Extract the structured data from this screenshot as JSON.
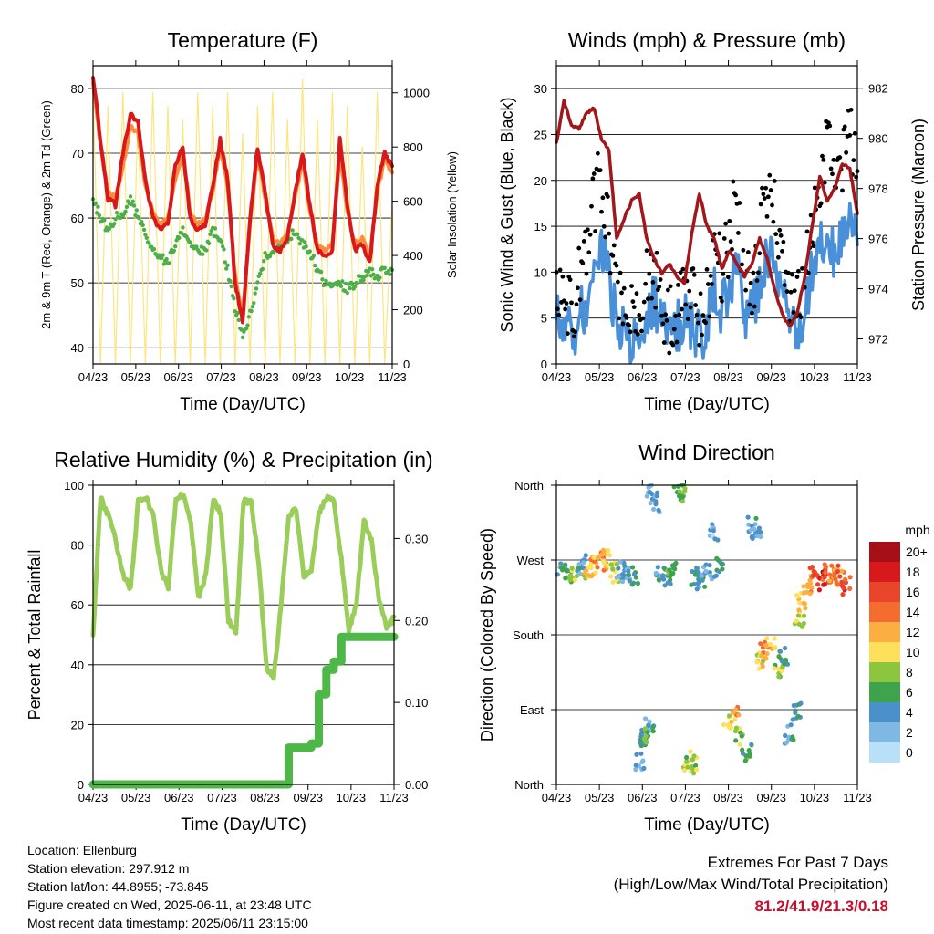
{
  "footer": {
    "location": "Location: Ellenburg",
    "elevation": "Station elevation: 297.912 m",
    "latlon": "Station lat/lon: 44.8955; -73.845",
    "created": "Figure created on Wed, 2025-06-11, at 23:48 UTC",
    "recent": "Most recent data timestamp: 2025/06/11 23:15:00"
  },
  "extremes": {
    "title": "Extremes For Past 7 Days",
    "subtitle": "(High/Low/Max Wind/Total Precipitation)",
    "values": "81.2/41.9/21.3/0.18",
    "color": "#c8102e"
  },
  "chart_data": [
    {
      "type": "line",
      "title": "Temperature (F)",
      "xlabel": "Time (Day/UTC)",
      "ylabel": "2m & 9m T (Red, Orange) & 2m Td (Green)",
      "y2label": "Solar Insolation (Yellow)",
      "x_ticks": [
        "04/23",
        "05/23",
        "06/23",
        "07/23",
        "08/23",
        "09/23",
        "10/23",
        "11/23"
      ],
      "ylim": [
        37.5,
        83.5
      ],
      "y_ticks": [
        40,
        50,
        60,
        70,
        80
      ],
      "y2lim": [
        0,
        1100
      ],
      "y2_ticks": [
        0,
        200,
        400,
        600,
        800,
        1000
      ],
      "grid": true,
      "series": [
        {
          "color": "#d7191c",
          "values": [
            82,
            72,
            63,
            62,
            70,
            76,
            75,
            66,
            60,
            58,
            59,
            68,
            71,
            60,
            58,
            59,
            65,
            72,
            66,
            50,
            44,
            60,
            71,
            64,
            56,
            55,
            57,
            64,
            70,
            62,
            55,
            54,
            55,
            72,
            62,
            55,
            56,
            53,
            65,
            70,
            68
          ]
        },
        {
          "color": "#fd8d3c",
          "values": [
            81,
            71,
            64,
            63,
            68,
            74,
            73,
            65,
            61,
            59,
            60,
            66,
            70,
            61,
            59,
            60,
            64,
            71,
            65,
            51,
            45,
            59,
            70,
            63,
            57,
            56,
            58,
            63,
            69,
            61,
            56,
            55,
            56,
            70,
            61,
            56,
            57,
            54,
            64,
            69,
            67
          ]
        },
        {
          "color": "#4daf4a",
          "values": [
            63,
            60,
            58,
            60,
            61,
            63,
            60,
            58,
            55,
            54,
            53,
            56,
            58,
            56,
            55,
            55,
            58,
            57,
            52,
            46,
            42,
            45,
            50,
            54,
            55,
            56,
            57,
            58,
            56,
            55,
            52,
            50,
            49,
            50,
            49,
            50,
            51,
            52,
            51,
            52,
            52
          ]
        },
        {
          "color": "#fde57e",
          "values": [
            1000,
            0,
            950,
            0,
            1000,
            0,
            900,
            0,
            1000,
            0,
            950,
            0,
            900,
            0,
            1000,
            0,
            950,
            0,
            1000,
            0,
            850,
            0,
            950,
            0,
            1000,
            0,
            900,
            0,
            1050,
            0,
            900,
            0,
            1000,
            0,
            950,
            0,
            800,
            0,
            1000,
            0,
            600
          ]
        }
      ]
    },
    {
      "type": "scatter",
      "title": "Winds (mph) & Pressure (mb)",
      "xlabel": "Time (Day/UTC)",
      "ylabel": "Sonic Wind & Gust (Blue, Black)",
      "y2label": "Station Pressure (Maroon)",
      "x_ticks": [
        "04/23",
        "05/23",
        "06/23",
        "07/23",
        "08/23",
        "09/23",
        "10/23",
        "11/23"
      ],
      "ylim": [
        0,
        32.5
      ],
      "y_ticks": [
        0,
        5,
        10,
        15,
        20,
        25,
        30
      ],
      "y2lim": [
        971.0,
        982.9
      ],
      "y2_ticks": [
        972,
        974,
        976,
        978,
        980,
        982
      ],
      "grid": true,
      "series": [
        {
          "color": "#000000",
          "values": [
            10,
            8,
            6,
            9,
            11,
            18,
            20,
            15,
            8,
            5,
            5,
            6,
            9,
            10,
            7,
            5,
            6,
            8,
            7,
            6,
            7,
            12,
            10,
            14,
            18,
            10,
            8,
            14,
            20,
            16,
            12,
            8,
            6,
            9,
            15,
            20,
            24,
            19,
            22,
            25,
            21
          ]
        },
        {
          "color": "#4a90d9",
          "values": [
            6,
            4,
            3,
            5,
            7,
            11,
            13,
            9,
            5,
            3,
            3,
            4,
            6,
            7,
            4,
            3,
            4,
            5,
            4,
            3,
            4,
            8,
            6,
            9,
            11,
            6,
            5,
            9,
            12,
            10,
            8,
            5,
            4,
            6,
            10,
            13,
            15,
            12,
            14,
            16,
            13
          ]
        },
        {
          "color": "#a0171c",
          "values": [
            979.8,
            981.5,
            980.5,
            980.4,
            981.0,
            981.2,
            980.0,
            979.5,
            976.0,
            976.8,
            977.5,
            977.8,
            976.0,
            975.2,
            974.6,
            975.0,
            974.5,
            974.2,
            976.2,
            977.8,
            976.5,
            976.0,
            974.8,
            975.5,
            975.0,
            974.5,
            975.0,
            976.0,
            975.2,
            974.0,
            973.0,
            972.5,
            973.0,
            974.5,
            976.5,
            978.5,
            977.5,
            978.0,
            979.0,
            978.8,
            977.0
          ]
        }
      ]
    },
    {
      "type": "line",
      "title": "Relative Humidity (%) & Precipitation (in)",
      "xlabel": "Time (Day/UTC)",
      "ylabel": "Percent & Total Rainfall",
      "x_ticks": [
        "04/23",
        "05/23",
        "06/23",
        "07/23",
        "08/23",
        "09/23",
        "10/23",
        "11/23"
      ],
      "ylim": [
        0,
        100
      ],
      "y_ticks": [
        0,
        20,
        40,
        60,
        80,
        100
      ],
      "y2lim": [
        0,
        0.365
      ],
      "y2_ticks": [
        "0.00",
        "0.10",
        "0.20",
        "0.30"
      ],
      "grid": true,
      "series": [
        {
          "color": "#9acd5a",
          "values": [
            50,
            96,
            90,
            82,
            70,
            65,
            95,
            96,
            90,
            72,
            65,
            95,
            97,
            88,
            62,
            70,
            96,
            90,
            55,
            50,
            95,
            94,
            75,
            40,
            35,
            60,
            90,
            92,
            70,
            72,
            90,
            96,
            95,
            75,
            52,
            60,
            88,
            82,
            62,
            52,
            56
          ]
        },
        {
          "color": "#4db848",
          "values": [
            0,
            0,
            0,
            0,
            0,
            0,
            0,
            0,
            0,
            0,
            0,
            0,
            0,
            0,
            0,
            0,
            0,
            0,
            0,
            0,
            0,
            0,
            0,
            0,
            0,
            0,
            0.045,
            0.045,
            0.045,
            0.05,
            0.11,
            0.14,
            0.15,
            0.18,
            0.18,
            0.18,
            0.18,
            0.18,
            0.18,
            0.18,
            0.18
          ]
        }
      ]
    },
    {
      "type": "scatter",
      "title": "Wind Direction",
      "xlabel": "Time (Day/UTC)",
      "ylabel": "Direction (Colored By Speed)",
      "x_ticks": [
        "04/23",
        "05/23",
        "06/23",
        "07/23",
        "08/23",
        "09/23",
        "10/23",
        "11/23"
      ],
      "y_ticks": [
        "North",
        "East",
        "South",
        "West",
        "North"
      ],
      "ylim": [
        0,
        360
      ],
      "colorbar": {
        "label": "mph",
        "ticks": [
          "20+",
          "18",
          "16",
          "14",
          "12",
          "10",
          "8",
          "6",
          "4",
          "2",
          "0"
        ],
        "colors": [
          "#a50f15",
          "#d7191c",
          "#e9452b",
          "#f46d2e",
          "#fdae41",
          "#fee05a",
          "#8cc63f",
          "#3fa34d",
          "#4a90c9",
          "#7fb8e3",
          "#b9e0f7"
        ]
      },
      "points": [
        [
          0.2,
          260,
          4
        ],
        [
          0.4,
          255,
          6
        ],
        [
          0.6,
          250,
          8
        ],
        [
          0.8,
          265,
          3
        ],
        [
          1.0,
          258,
          10
        ],
        [
          1.2,
          262,
          12
        ],
        [
          1.5,
          268,
          14
        ],
        [
          1.7,
          270,
          10
        ],
        [
          1.9,
          255,
          9
        ],
        [
          2.1,
          260,
          4
        ],
        [
          2.3,
          252,
          3
        ],
        [
          2.5,
          250,
          5
        ],
        [
          2.7,
          30,
          3
        ],
        [
          2.8,
          50,
          5
        ],
        [
          2.9,
          70,
          4
        ],
        [
          3.0,
          60,
          6
        ],
        [
          3.1,
          355,
          2
        ],
        [
          3.2,
          340,
          3
        ],
        [
          3.4,
          255,
          4
        ],
        [
          3.6,
          250,
          6
        ],
        [
          3.8,
          258,
          5
        ],
        [
          4.0,
          352,
          5
        ],
        [
          4.1,
          345,
          7
        ],
        [
          4.3,
          20,
          9
        ],
        [
          4.4,
          30,
          8
        ],
        [
          4.5,
          250,
          5
        ],
        [
          4.7,
          245,
          4
        ],
        [
          4.9,
          258,
          3
        ],
        [
          5.1,
          305,
          2
        ],
        [
          5.3,
          260,
          5
        ],
        [
          5.6,
          78,
          10
        ],
        [
          5.8,
          85,
          12
        ],
        [
          6.0,
          60,
          8
        ],
        [
          6.2,
          40,
          6
        ],
        [
          6.4,
          310,
          4
        ],
        [
          6.5,
          300,
          3
        ],
        [
          6.6,
          150,
          10
        ],
        [
          6.8,
          160,
          13
        ],
        [
          7.0,
          170,
          12
        ],
        [
          7.2,
          140,
          8
        ],
        [
          7.4,
          155,
          6
        ],
        [
          7.6,
          60,
          4
        ],
        [
          7.8,
          90,
          5
        ],
        [
          7.9,
          200,
          9
        ],
        [
          8.0,
          220,
          11
        ],
        [
          8.2,
          240,
          13
        ],
        [
          8.4,
          250,
          16
        ],
        [
          8.6,
          245,
          18
        ],
        [
          8.8,
          255,
          15
        ],
        [
          9.0,
          248,
          12
        ],
        [
          9.2,
          252,
          14
        ],
        [
          9.4,
          240,
          16
        ]
      ]
    }
  ]
}
